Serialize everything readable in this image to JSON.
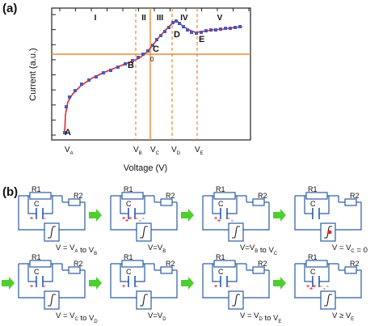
{
  "panel_a": {
    "label": "(a)",
    "ylabel": "Current (a.u.)",
    "xlabel": "Voltage (V)",
    "regions": [
      "I",
      "II",
      "III",
      "IV",
      "V"
    ],
    "points": [
      "A",
      "B",
      "C",
      "D",
      "E"
    ],
    "origin_label": "0",
    "ticks": [
      {
        "main": "V",
        "sub": "A"
      },
      {
        "main": "V",
        "sub": "B"
      },
      {
        "main": "V",
        "sub": "C"
      },
      {
        "main": "V",
        "sub": "D"
      },
      {
        "main": "V",
        "sub": "E"
      }
    ]
  },
  "panel_b": {
    "label": "(b)",
    "r1": "R1",
    "r2": "R2",
    "c": "C",
    "captions": [
      [
        {
          "t": "V = V"
        },
        {
          "s": "A"
        },
        {
          "t": " to V"
        },
        {
          "s": "B"
        }
      ],
      [
        {
          "t": "V=V"
        },
        {
          "s": "B"
        }
      ],
      [
        {
          "t": "V=V"
        },
        {
          "s": "B"
        },
        {
          "t": " to V"
        },
        {
          "s": "C"
        }
      ],
      [
        {
          "t": "V = V"
        },
        {
          "s": "C"
        },
        {
          "t": " = 0"
        }
      ],
      [
        {
          "t": "V = V"
        },
        {
          "s": "C"
        },
        {
          "t": " to V"
        },
        {
          "s": "D"
        }
      ],
      [
        {
          "t": "V=V"
        },
        {
          "s": "D"
        }
      ],
      [
        {
          "t": "V = V"
        },
        {
          "s": "D"
        },
        {
          "t": " to V"
        },
        {
          "s": "E"
        }
      ],
      [
        {
          "t": "V ≥ V"
        },
        {
          "s": "E"
        }
      ]
    ]
  },
  "colors": {
    "curve": "#e8262b",
    "markers": "#4a59b8",
    "axis_lines": "#e58a3c",
    "arrow": "#4ccf2f",
    "circuit": "#2b5aa0",
    "charges": "#e8262b"
  }
}
